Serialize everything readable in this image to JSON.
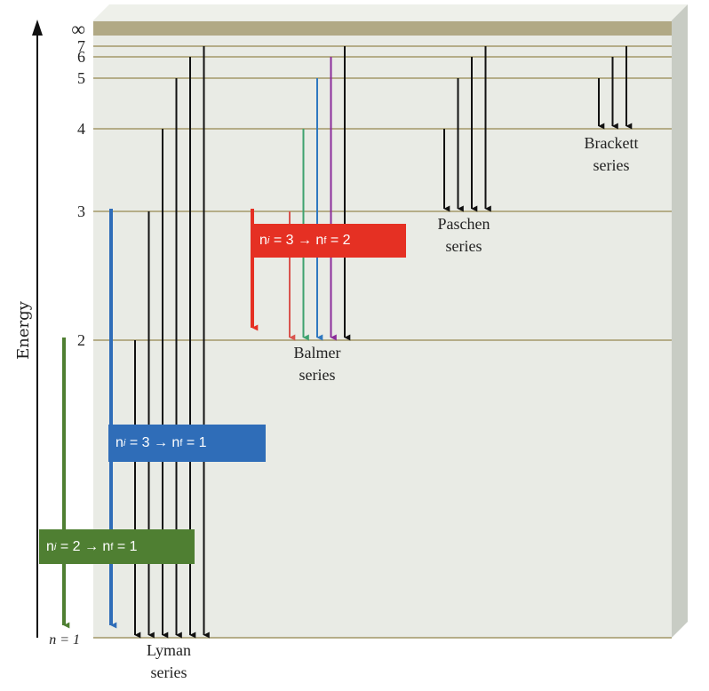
{
  "diagram": {
    "axis_label": "Energy",
    "ground_label": "n = 1",
    "infinity_label": "∞",
    "levels": [
      {
        "n": "∞",
        "label": "∞"
      },
      {
        "n": 7,
        "label": "7"
      },
      {
        "n": 6,
        "label": "6"
      },
      {
        "n": 5,
        "label": "5"
      },
      {
        "n": 4,
        "label": "4"
      },
      {
        "n": 3,
        "label": "3"
      },
      {
        "n": 2,
        "label": "2"
      }
    ],
    "series": [
      {
        "name": "Lyman",
        "line1": "Lyman",
        "line2": "series",
        "final_level": 1,
        "initial_levels": [
          2,
          3,
          4,
          5,
          6,
          7
        ]
      },
      {
        "name": "Balmer",
        "line1": "Balmer",
        "line2": "series",
        "final_level": 2,
        "initial_levels": [
          3,
          4,
          5,
          6,
          7
        ]
      },
      {
        "name": "Paschen",
        "line1": "Paschen",
        "line2": "series",
        "final_level": 3,
        "initial_levels": [
          4,
          5,
          6,
          7
        ]
      },
      {
        "name": "Brackett",
        "line1": "Brackett",
        "line2": "series",
        "final_level": 4,
        "initial_levels": [
          5,
          6,
          7
        ]
      }
    ],
    "callouts": {
      "red": {
        "ni": "3",
        "nf": "2",
        "color": "#e53023"
      },
      "blue": {
        "ni": "3",
        "nf": "1",
        "color": "#2f6db8"
      },
      "green": {
        "ni": "2",
        "nf": "1",
        "color": "#4f7f32"
      }
    },
    "callout_text": {
      "n": "n",
      "i": "i",
      "f": "f",
      "arrow": "→",
      "eq": "="
    },
    "colors": {
      "panel": "#e9ebe5",
      "side": "#c8ccc4",
      "level_line": "#b5ad88",
      "infinity_band": "#b1a985",
      "balmer_arrows": [
        "#d9544e",
        "#3ea26f",
        "#2f78c0",
        "#8b2c9a",
        "#111111"
      ]
    }
  }
}
